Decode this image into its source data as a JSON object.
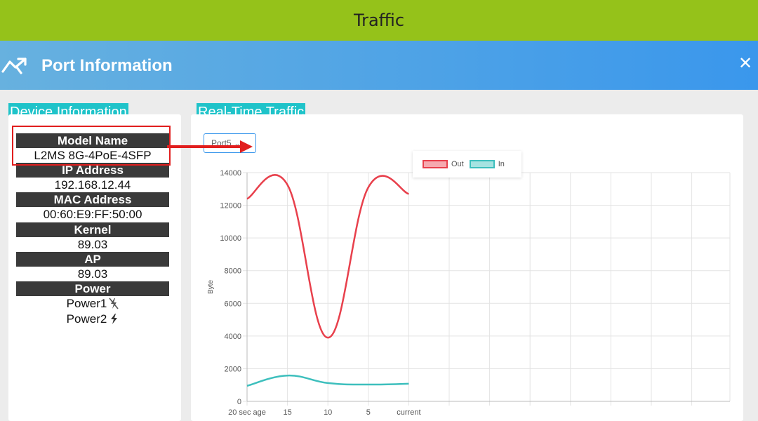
{
  "topbar": {
    "title": "Traffic"
  },
  "header": {
    "title": "Port Information",
    "close_icon": "close-icon",
    "brand_icon": "trend-chart-icon"
  },
  "device_info": {
    "section_label": "Device Information",
    "model_name_label": "Model Name",
    "model_name_value": "L2MS 8G-4PoE-4SFP",
    "ip_label": "IP Address",
    "ip_value": "192.168.12.44",
    "mac_label": "MAC Address",
    "mac_value": "00:60:E9:FF:50:00",
    "kernel_label": "Kernel",
    "kernel_value": "89.03",
    "ap_label": "AP",
    "ap_value": "89.03",
    "power_label": "Power",
    "power1": {
      "label": "Power1",
      "icon": "power-off-icon"
    },
    "power2": {
      "label": "Power2",
      "icon": "power-on-icon"
    }
  },
  "realtime": {
    "section_label": "Real-Time Traffic",
    "port_select_value": "Port5"
  },
  "colors": {
    "out": "#e8404c",
    "in": "#3dbfbd",
    "accent": "#1fc3c9",
    "topbar": "#95c21a"
  },
  "chart_data": {
    "type": "line",
    "ylabel": "Byte",
    "xlabel": "",
    "ylim": [
      0,
      14000
    ],
    "yticks": [
      "0",
      "2000",
      "4000",
      "6000",
      "8000",
      "10000",
      "12000",
      "14000"
    ],
    "categories": [
      "20 sec age",
      "15",
      "10",
      "5",
      "current"
    ],
    "series": [
      {
        "name": "Out",
        "values": [
          12400,
          13250,
          3900,
          13100,
          12700
        ]
      },
      {
        "name": "In",
        "values": [
          950,
          1580,
          1120,
          1030,
          1080
        ]
      }
    ],
    "legend": "top-center"
  }
}
